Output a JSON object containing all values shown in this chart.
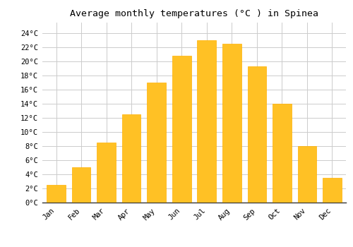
{
  "title": "Average monthly temperatures (°C ) in Spinea",
  "months": [
    "Jan",
    "Feb",
    "Mar",
    "Apr",
    "May",
    "Jun",
    "Jul",
    "Aug",
    "Sep",
    "Oct",
    "Nov",
    "Dec"
  ],
  "values": [
    2.5,
    5.0,
    8.5,
    12.5,
    17.0,
    20.8,
    23.0,
    22.5,
    19.3,
    14.0,
    8.0,
    3.5
  ],
  "bar_color": "#FFC125",
  "bar_edge_color": "#FFB000",
  "background_color": "#FFFFFF",
  "grid_color": "#CCCCCC",
  "yticks": [
    0,
    2,
    4,
    6,
    8,
    10,
    12,
    14,
    16,
    18,
    20,
    22,
    24
  ],
  "ylim": [
    0,
    25.5
  ],
  "title_fontsize": 9.5,
  "tick_fontsize": 7.5,
  "font_family": "monospace",
  "bar_width": 0.75
}
